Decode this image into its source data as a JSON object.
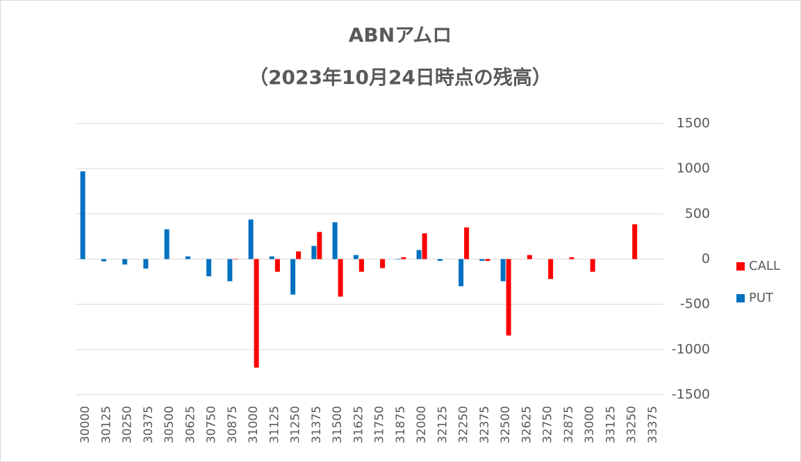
{
  "chart_data": {
    "type": "bar",
    "title": "ABNアムロ",
    "subtitle": "（2023年10月24日時点の残高）",
    "categories": [
      "30000",
      "30125",
      "30250",
      "30375",
      "30500",
      "30625",
      "30750",
      "30875",
      "31000",
      "31125",
      "31250",
      "31375",
      "31500",
      "31625",
      "31750",
      "31875",
      "32000",
      "32125",
      "32250",
      "32375",
      "32500",
      "32625",
      "32750",
      "32875",
      "33000",
      "33125",
      "33250",
      "33375"
    ],
    "series": [
      {
        "name": "CALL",
        "color": "#ff0000",
        "values": [
          0,
          0,
          0,
          0,
          0,
          0,
          0,
          -5,
          -1200,
          -140,
          85,
          300,
          -415,
          -140,
          -100,
          20,
          285,
          0,
          350,
          -20,
          -845,
          45,
          -220,
          20,
          -140,
          0,
          385,
          0
        ]
      },
      {
        "name": "PUT",
        "color": "#0070c0",
        "values": [
          970,
          -25,
          -60,
          -105,
          330,
          30,
          -190,
          -245,
          438,
          30,
          -392,
          146,
          408,
          45,
          0,
          -5,
          100,
          -20,
          -300,
          -20,
          -245,
          0,
          0,
          0,
          0,
          0,
          0,
          0
        ]
      }
    ],
    "ylim": [
      -1500,
      1500
    ],
    "yticks": [
      -1500,
      -1000,
      -500,
      0,
      500,
      1000,
      1500
    ],
    "grid": true,
    "legend": "right"
  }
}
